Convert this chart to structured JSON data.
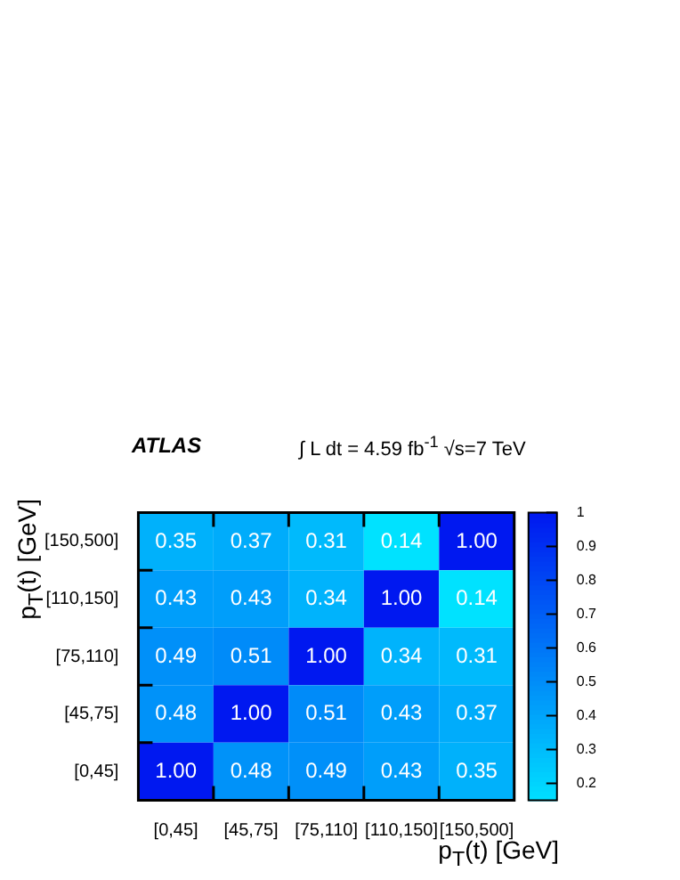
{
  "chart_data": {
    "type": "heatmap",
    "annotations": [
      "ATLAS",
      "∫ L dt = 4.59 fb$^{-1}$  √s=7 TeV"
    ],
    "xlabel": "p$_{T}$(t) [GeV]",
    "ylabel": "p$_{T}$(t) [GeV]",
    "categories": [
      "[0,45]",
      "[45,75]",
      "[75,110]",
      "[110,150]",
      "[150,500]"
    ],
    "y_categories": [
      "[150,500]",
      "[110,150]",
      "[75,110]",
      "[45,75]",
      "[0,45]"
    ],
    "cells": [
      [
        0.35,
        0.37,
        0.31,
        0.14,
        1.0
      ],
      [
        0.43,
        0.43,
        0.34,
        1.0,
        0.14
      ],
      [
        0.49,
        0.51,
        1.0,
        0.34,
        0.31
      ],
      [
        0.48,
        1.0,
        0.51,
        0.43,
        0.37
      ],
      [
        1.0,
        0.48,
        0.49,
        0.43,
        0.35
      ]
    ],
    "cell_labels": [
      [
        "0.35",
        "0.37",
        "0.31",
        "0.14",
        "1.00"
      ],
      [
        "0.43",
        "0.43",
        "0.34",
        "1.00",
        "0.14"
      ],
      [
        "0.49",
        "0.51",
        "1.00",
        "0.34",
        "0.31"
      ],
      [
        "0.48",
        "1.00",
        "0.51",
        "0.43",
        "0.37"
      ],
      [
        "1.00",
        "0.48",
        "0.49",
        "0.43",
        "0.35"
      ]
    ],
    "clim": [
      0.15,
      1
    ],
    "cticks": [
      0.2,
      0.3,
      0.4,
      0.5,
      0.6,
      0.7,
      0.8,
      0.9,
      1
    ]
  }
}
